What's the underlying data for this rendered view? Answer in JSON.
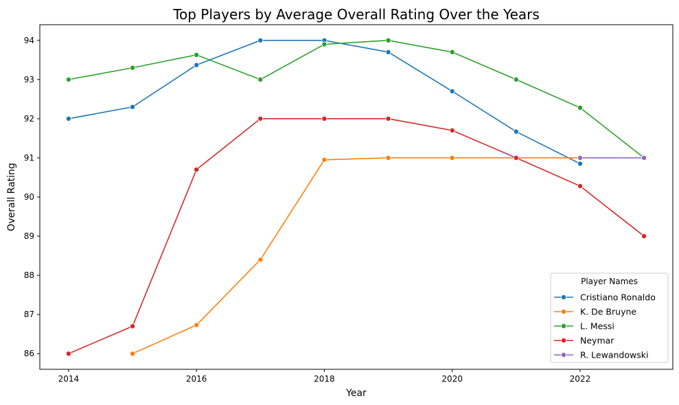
{
  "chart_data": {
    "type": "line",
    "title": "Top Players by Average Overall Rating Over the Years",
    "xlabel": "Year",
    "ylabel": "Overall Rating",
    "xlim": [
      2013.55,
      2023.45
    ],
    "ylim": [
      85.6,
      94.4
    ],
    "xticks": [
      2014,
      2016,
      2018,
      2020,
      2022
    ],
    "yticks": [
      86,
      87,
      88,
      89,
      90,
      91,
      92,
      93,
      94
    ],
    "grid": false,
    "legend": {
      "title": "Player Names",
      "placement": "lower-right"
    },
    "series": [
      {
        "name": "Cristiano Ronaldo",
        "color": "#1f77b4",
        "x": [
          2014,
          2015,
          2016,
          2017,
          2018,
          2019,
          2020,
          2021,
          2022
        ],
        "y": [
          92.0,
          92.3,
          93.37,
          94.0,
          94.0,
          93.7,
          92.7,
          91.67,
          90.85
        ]
      },
      {
        "name": "K. De Bruyne",
        "color": "#ff7f0e",
        "x": [
          2015,
          2016,
          2017,
          2018,
          2019,
          2020,
          2021,
          2022
        ],
        "y": [
          86.0,
          86.73,
          88.4,
          90.95,
          91.0,
          91.0,
          91.0,
          91.0
        ]
      },
      {
        "name": "L. Messi",
        "color": "#2ca02c",
        "x": [
          2014,
          2015,
          2016,
          2017,
          2018,
          2019,
          2020,
          2021,
          2022,
          2023
        ],
        "y": [
          93.0,
          93.3,
          93.63,
          93.0,
          93.9,
          94.0,
          93.7,
          93.0,
          92.28,
          91.0
        ]
      },
      {
        "name": "Neymar",
        "color": "#d62728",
        "x": [
          2014,
          2015,
          2016,
          2017,
          2018,
          2019,
          2020,
          2021,
          2022,
          2023
        ],
        "y": [
          86.0,
          86.7,
          90.7,
          92.0,
          92.0,
          92.0,
          91.7,
          91.0,
          90.28,
          89.0
        ]
      },
      {
        "name": "R. Lewandowski",
        "color": "#9467bd",
        "x": [
          2022,
          2023
        ],
        "y": [
          91.0,
          91.0
        ]
      }
    ]
  }
}
